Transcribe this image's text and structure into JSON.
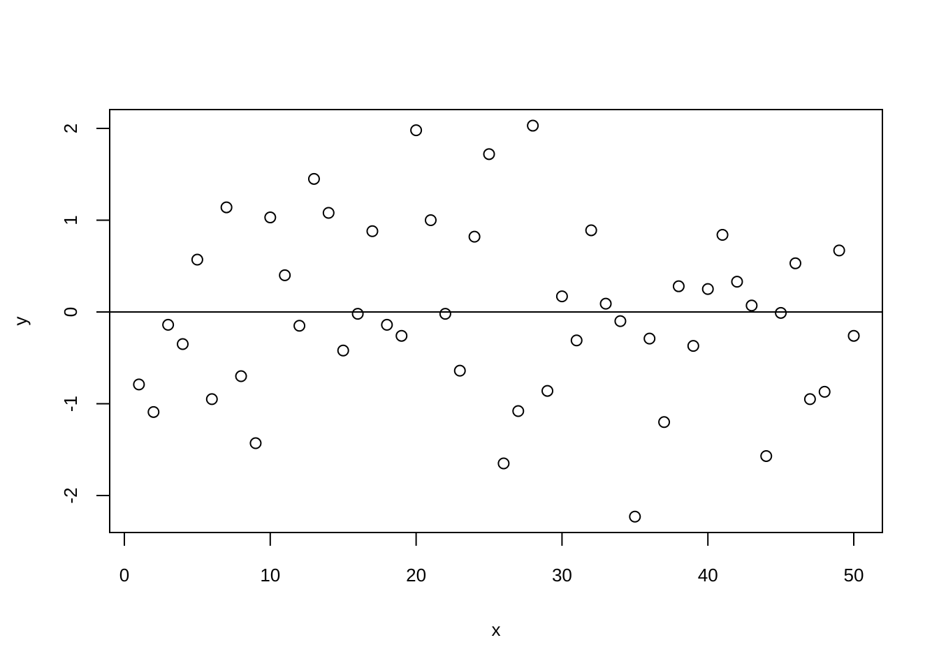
{
  "chart_data": {
    "type": "scatter",
    "title": "",
    "xlabel": "x",
    "ylabel": "y",
    "xlim": [
      -1,
      52
    ],
    "ylim": [
      -2.4,
      2.2
    ],
    "x_ticks": [
      0,
      10,
      20,
      30,
      40,
      50
    ],
    "y_ticks": [
      -2,
      -1,
      0,
      1,
      2
    ],
    "grid": false,
    "legend": "none",
    "reference_lines": [
      {
        "orientation": "horizontal",
        "y": 0
      }
    ],
    "marker": "open-circle",
    "colors": {
      "points": "#000000",
      "axes": "#000000",
      "background": "#ffffff"
    },
    "series": [
      {
        "x": [
          1,
          2,
          3,
          4,
          5,
          6,
          7,
          8,
          9,
          10,
          11,
          12,
          13,
          14,
          15,
          16,
          17,
          18,
          19,
          20,
          21,
          22,
          23,
          24,
          25,
          26,
          27,
          28,
          29,
          30,
          31,
          32,
          33,
          34,
          35,
          36,
          37,
          38,
          39,
          40,
          41,
          42,
          43,
          44,
          45,
          46,
          47,
          48,
          49,
          50
        ],
        "y": [
          -0.79,
          -1.09,
          -0.14,
          -0.35,
          0.57,
          -0.95,
          1.14,
          -0.7,
          -1.43,
          1.03,
          0.4,
          -0.15,
          1.45,
          1.08,
          -0.42,
          -0.02,
          0.88,
          -0.14,
          -0.26,
          1.98,
          1.0,
          -0.02,
          -0.64,
          0.82,
          1.72,
          -1.65,
          -1.08,
          2.03,
          -0.86,
          0.17,
          -0.31,
          0.89,
          0.09,
          -0.1,
          -2.23,
          -0.29,
          -1.2,
          0.28,
          -0.37,
          0.25,
          0.84,
          0.33,
          0.07,
          -1.57,
          -0.01,
          0.53,
          -0.95,
          -0.87,
          0.67,
          -0.26
        ]
      }
    ]
  }
}
